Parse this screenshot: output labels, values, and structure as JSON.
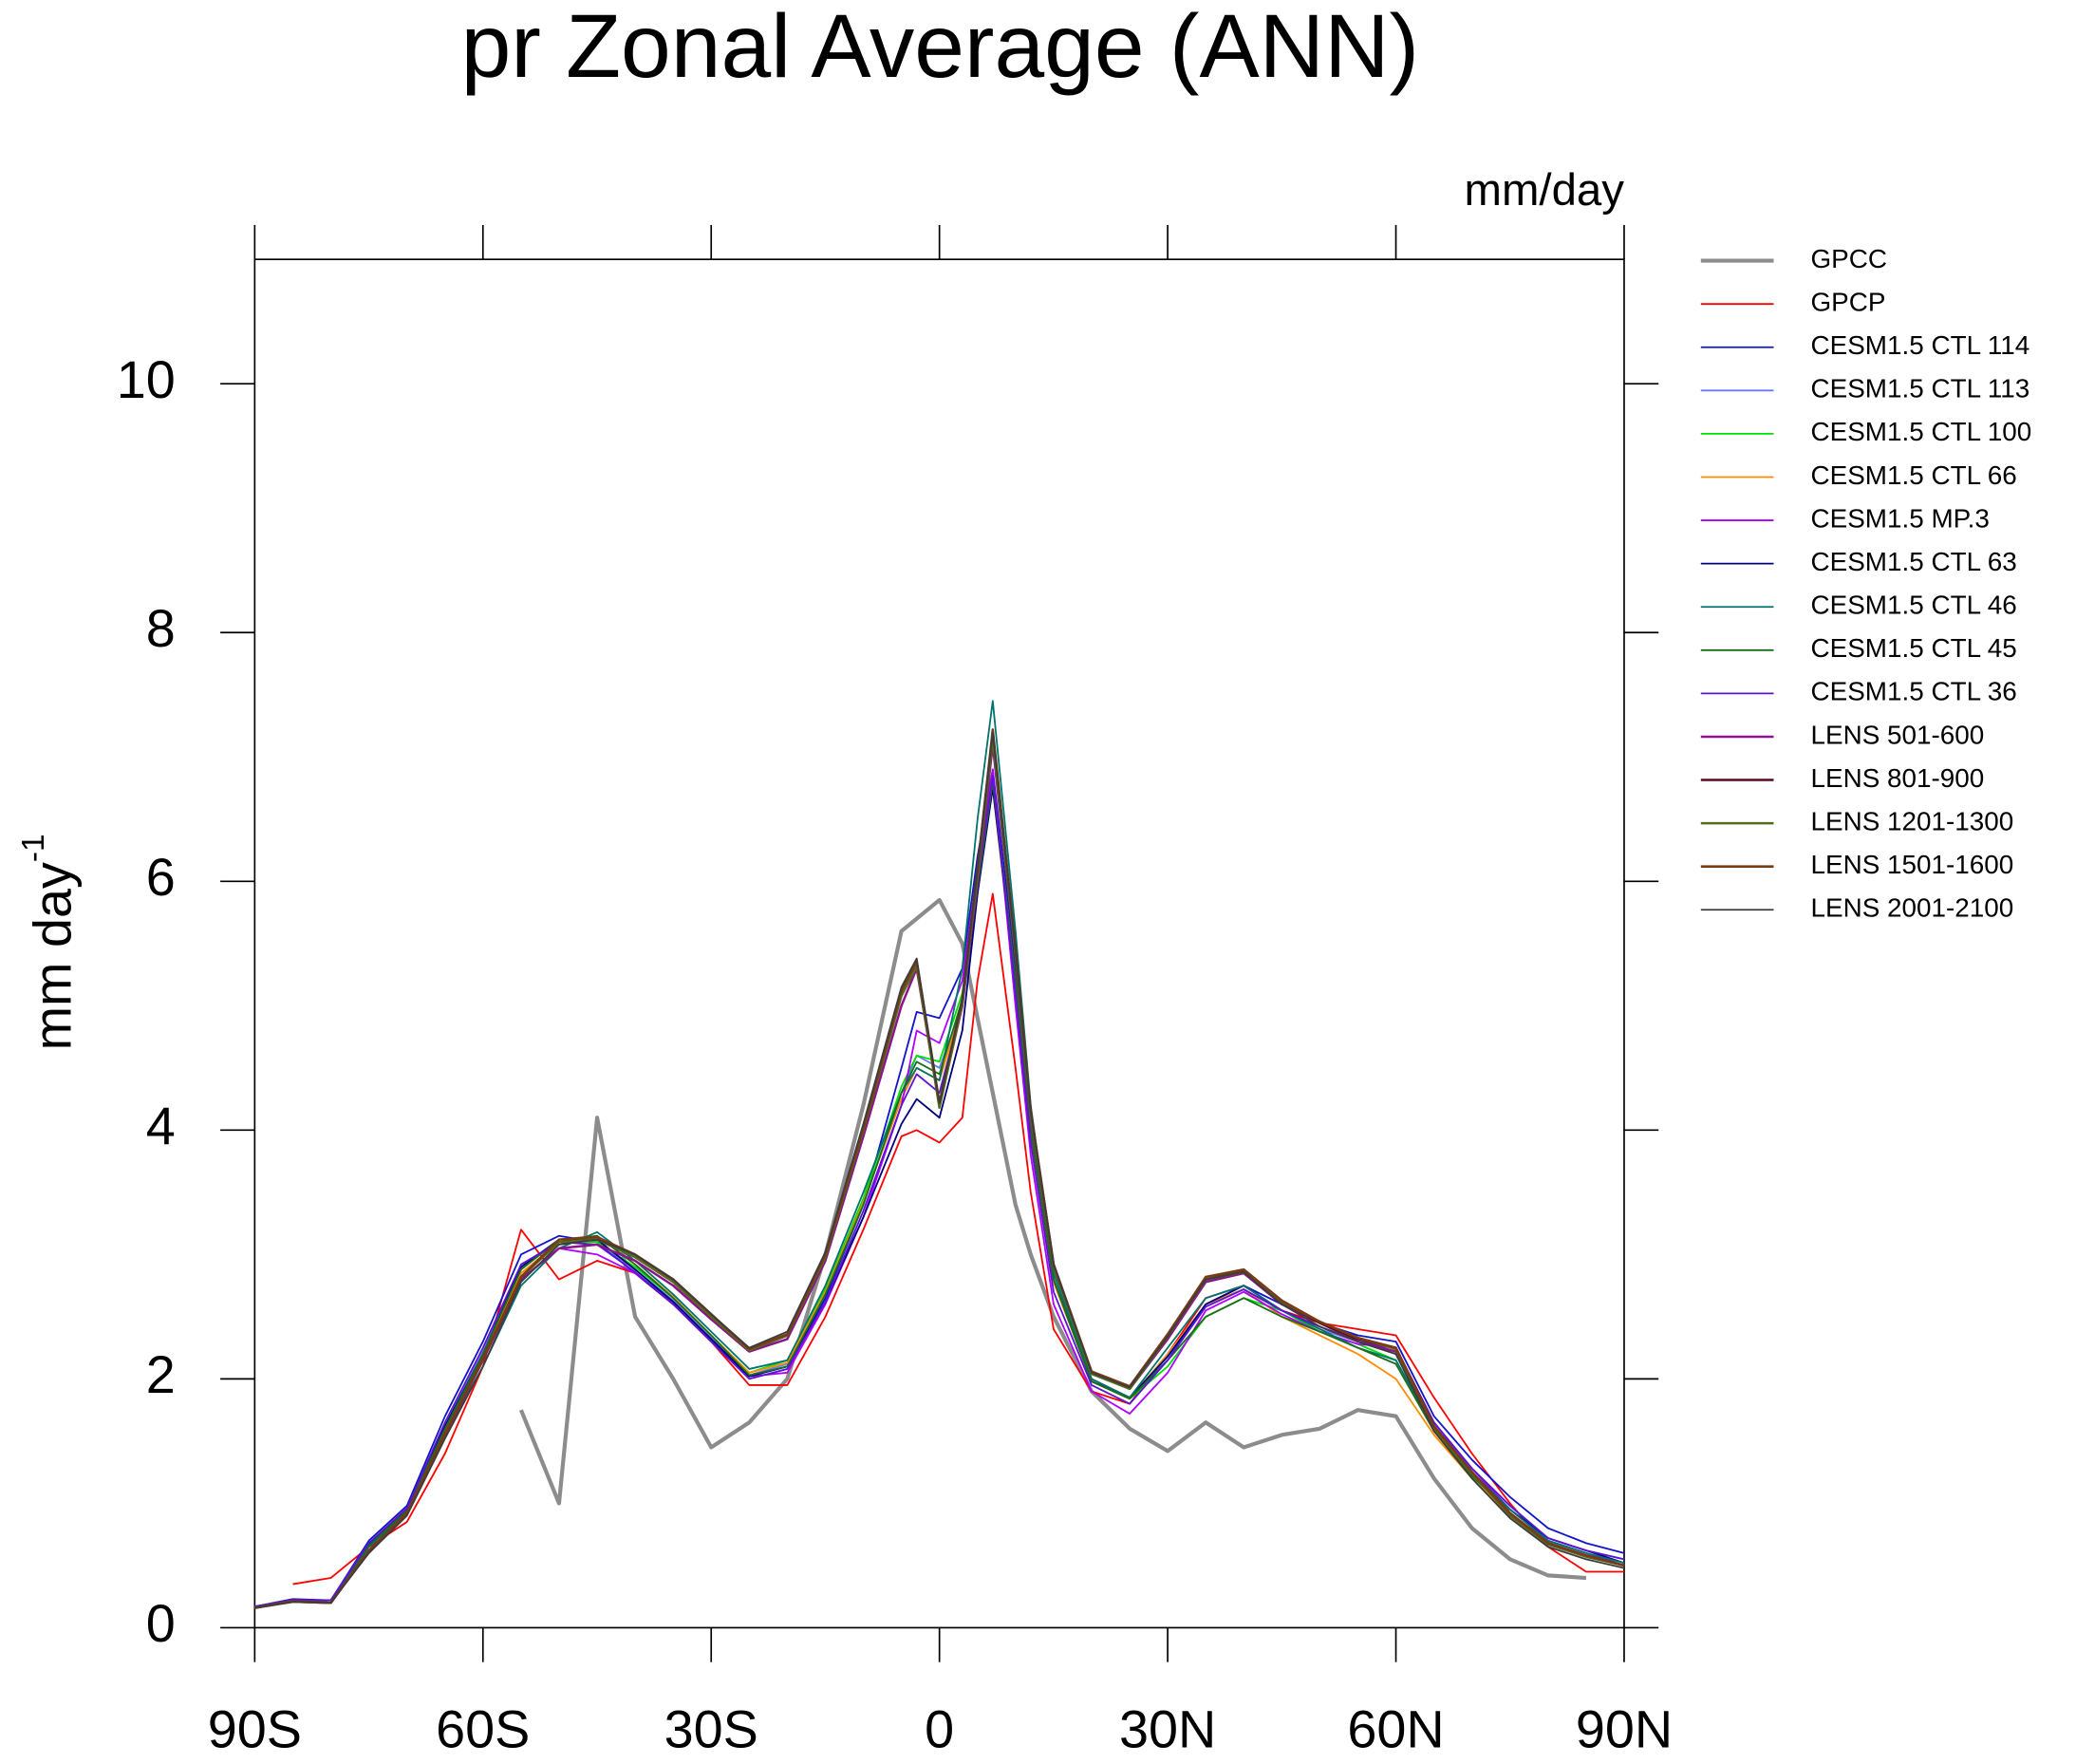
{
  "chart_data": {
    "type": "line",
    "title": "pr Zonal Average (ANN)",
    "units": "mm/day",
    "ylabel": "mm day",
    "ylabel_sup": "-1",
    "x": [
      -90,
      -85,
      -80,
      -75,
      -70,
      -65,
      -60,
      -55,
      -50,
      -45,
      -40,
      -35,
      -30,
      -25,
      -20,
      -15,
      -10,
      -5,
      -3,
      0,
      3,
      5,
      7,
      10,
      12,
      15,
      20,
      25,
      30,
      35,
      40,
      45,
      50,
      55,
      60,
      65,
      70,
      75,
      80,
      85,
      90
    ],
    "xlim": [
      -90,
      90
    ],
    "xticks": [
      {
        "value": -90,
        "label": "90S"
      },
      {
        "value": -60,
        "label": "60S"
      },
      {
        "value": -30,
        "label": "30S"
      },
      0,
      {
        "value": 30,
        "label": "30N"
      },
      {
        "value": 60,
        "label": "60N"
      },
      {
        "value": 90,
        "label": "90N"
      }
    ],
    "ylim": [
      0,
      11
    ],
    "yticks": [
      0,
      2,
      4,
      6,
      8,
      10
    ],
    "grid": false,
    "legend": "outside-right",
    "series": [
      {
        "name": "GPCC",
        "color": "#8c8c8c",
        "linewidth": 3,
        "values": [
          null,
          null,
          null,
          null,
          null,
          null,
          null,
          1.75,
          1.0,
          4.1,
          2.5,
          2.0,
          1.45,
          1.65,
          2.0,
          3.0,
          4.2,
          5.6,
          5.7,
          5.85,
          5.5,
          4.9,
          4.3,
          3.4,
          3.0,
          2.5,
          1.9,
          1.6,
          1.42,
          1.65,
          1.45,
          1.55,
          1.6,
          1.75,
          1.7,
          1.2,
          0.8,
          0.55,
          0.42,
          0.4,
          null
        ]
      },
      {
        "name": "GPCP",
        "color": "#ff0000",
        "linewidth": 1.3,
        "values": [
          null,
          0.35,
          0.4,
          0.65,
          0.85,
          1.4,
          2.1,
          3.2,
          2.8,
          2.95,
          2.85,
          2.6,
          2.3,
          1.95,
          1.95,
          2.5,
          3.2,
          3.95,
          4.0,
          3.9,
          4.1,
          5.2,
          5.9,
          4.5,
          3.5,
          2.4,
          1.9,
          1.8,
          2.2,
          2.65,
          2.75,
          2.55,
          2.45,
          2.4,
          2.35,
          1.85,
          1.4,
          1.0,
          0.65,
          0.45,
          0.45
        ]
      },
      {
        "name": "CESM1.5 CTL 114",
        "color": "#1414c8",
        "linewidth": 1.3,
        "values": [
          0.17,
          0.23,
          0.22,
          0.7,
          0.98,
          1.7,
          2.3,
          3.0,
          3.15,
          3.1,
          2.85,
          2.6,
          2.3,
          2.02,
          2.1,
          2.65,
          3.4,
          4.5,
          4.95,
          4.9,
          5.3,
          6.2,
          6.9,
          5.3,
          4.0,
          2.8,
          2.0,
          1.85,
          2.15,
          2.6,
          2.75,
          2.6,
          2.45,
          2.35,
          2.3,
          1.7,
          1.35,
          1.05,
          0.8,
          0.68,
          0.6
        ]
      },
      {
        "name": "CESM1.5 CTL 113",
        "color": "#6a7aff",
        "linewidth": 1.3,
        "values": [
          0.17,
          0.22,
          0.22,
          0.68,
          0.95,
          1.62,
          2.22,
          2.88,
          3.12,
          3.1,
          2.88,
          2.63,
          2.33,
          2.03,
          2.12,
          2.7,
          3.4,
          4.3,
          4.6,
          4.5,
          5.0,
          5.9,
          6.8,
          5.2,
          4.0,
          2.78,
          1.98,
          1.84,
          2.18,
          2.6,
          2.72,
          2.55,
          2.4,
          2.3,
          2.25,
          1.62,
          1.28,
          0.98,
          0.72,
          0.62,
          0.55
        ]
      },
      {
        "name": "CESM1.5 CTL 100",
        "color": "#00e000",
        "linewidth": 1.3,
        "values": [
          0.17,
          0.22,
          0.22,
          0.66,
          0.94,
          1.6,
          2.2,
          2.85,
          3.1,
          3.1,
          2.9,
          2.65,
          2.35,
          2.05,
          2.15,
          2.72,
          3.45,
          4.35,
          4.6,
          4.55,
          5.1,
          6.0,
          6.8,
          5.2,
          3.95,
          2.78,
          1.98,
          1.84,
          2.1,
          2.5,
          2.65,
          2.55,
          2.38,
          2.28,
          2.15,
          1.6,
          1.25,
          0.95,
          0.7,
          0.6,
          0.5
        ]
      },
      {
        "name": "CESM1.5 CTL 66",
        "color": "#ff8c00",
        "linewidth": 1.3,
        "values": [
          0.17,
          0.22,
          0.22,
          0.66,
          0.95,
          1.6,
          2.2,
          2.85,
          3.1,
          3.15,
          2.92,
          2.66,
          2.35,
          2.05,
          2.13,
          2.7,
          3.42,
          4.25,
          4.5,
          4.4,
          5.0,
          5.95,
          6.75,
          5.15,
          3.95,
          2.78,
          1.98,
          1.84,
          2.2,
          2.6,
          2.72,
          2.5,
          2.35,
          2.2,
          2.0,
          1.55,
          1.2,
          0.9,
          0.68,
          0.58,
          0.5
        ]
      },
      {
        "name": "CESM1.5 MP.3",
        "color": "#b000ff",
        "linewidth": 1.3,
        "values": [
          0.17,
          0.22,
          0.22,
          0.66,
          0.95,
          1.6,
          2.18,
          2.8,
          3.05,
          3.0,
          2.85,
          2.62,
          2.32,
          2.02,
          2.05,
          2.6,
          3.3,
          4.2,
          4.8,
          4.7,
          5.2,
          6.1,
          6.9,
          5.0,
          3.8,
          2.6,
          1.9,
          1.72,
          2.05,
          2.55,
          2.7,
          2.52,
          2.38,
          2.28,
          2.25,
          1.65,
          1.28,
          0.95,
          0.7,
          0.6,
          0.5
        ]
      },
      {
        "name": "CESM1.5 CTL 63",
        "color": "#000080",
        "linewidth": 1.3,
        "values": [
          0.17,
          0.22,
          0.22,
          0.67,
          0.95,
          1.62,
          2.2,
          2.9,
          3.12,
          3.12,
          2.88,
          2.62,
          2.32,
          2.02,
          2.1,
          2.62,
          3.3,
          4.05,
          4.25,
          4.1,
          4.8,
          5.9,
          6.75,
          5.2,
          4.0,
          2.8,
          1.98,
          1.85,
          2.18,
          2.6,
          2.75,
          2.55,
          2.42,
          2.3,
          2.2,
          1.62,
          1.25,
          0.95,
          0.72,
          0.62,
          0.52
        ]
      },
      {
        "name": "CESM1.5 CTL 46",
        "color": "#00736e",
        "linewidth": 1.3,
        "values": [
          0.17,
          0.22,
          0.22,
          0.65,
          0.93,
          1.55,
          2.1,
          2.75,
          3.05,
          3.18,
          2.95,
          2.68,
          2.38,
          2.08,
          2.15,
          2.75,
          3.5,
          4.3,
          4.5,
          4.4,
          5.3,
          6.5,
          7.45,
          5.6,
          4.2,
          2.85,
          2.0,
          1.85,
          2.25,
          2.65,
          2.75,
          2.55,
          2.4,
          2.25,
          2.15,
          1.6,
          1.25,
          0.95,
          0.7,
          0.6,
          0.52
        ]
      },
      {
        "name": "CESM1.5 CTL 45",
        "color": "#1a6e1a",
        "linewidth": 1.3,
        "values": [
          0.17,
          0.22,
          0.22,
          0.66,
          0.94,
          1.6,
          2.2,
          2.88,
          3.12,
          3.15,
          2.92,
          2.65,
          2.35,
          2.03,
          2.1,
          2.68,
          3.4,
          4.3,
          4.55,
          4.45,
          5.05,
          5.95,
          6.8,
          5.2,
          4.0,
          2.8,
          1.98,
          1.84,
          2.15,
          2.5,
          2.65,
          2.5,
          2.38,
          2.25,
          2.12,
          1.58,
          1.22,
          0.92,
          0.68,
          0.58,
          0.5
        ]
      },
      {
        "name": "CESM1.5 CTL 36",
        "color": "#5a14d2",
        "linewidth": 1.3,
        "values": [
          0.17,
          0.22,
          0.22,
          0.68,
          0.96,
          1.65,
          2.25,
          2.92,
          3.1,
          3.08,
          2.86,
          2.6,
          2.3,
          2.0,
          2.08,
          2.62,
          3.35,
          4.2,
          4.45,
          4.3,
          5.0,
          6.0,
          6.85,
          5.1,
          3.9,
          2.7,
          1.95,
          1.8,
          2.15,
          2.58,
          2.72,
          2.55,
          2.42,
          2.3,
          2.25,
          1.65,
          1.28,
          0.98,
          0.72,
          0.62,
          0.55
        ]
      },
      {
        "name": "LENS 501-600",
        "color": "#8c148c",
        "linewidth": 1.8,
        "values": [
          0.16,
          0.22,
          0.2,
          0.62,
          0.92,
          1.55,
          2.15,
          2.8,
          3.05,
          3.08,
          2.95,
          2.75,
          2.48,
          2.22,
          2.32,
          2.95,
          3.95,
          5.0,
          5.3,
          4.2,
          5.0,
          6.0,
          7.1,
          5.4,
          4.1,
          2.9,
          2.05,
          1.92,
          2.32,
          2.78,
          2.85,
          2.6,
          2.45,
          2.3,
          2.22,
          1.62,
          1.25,
          0.92,
          0.68,
          0.58,
          0.5
        ]
      },
      {
        "name": "LENS 801-900",
        "color": "#5a0a1e",
        "linewidth": 1.8,
        "values": [
          0.16,
          0.21,
          0.2,
          0.62,
          0.92,
          1.56,
          2.16,
          2.82,
          3.1,
          3.12,
          2.98,
          2.78,
          2.5,
          2.23,
          2.35,
          2.98,
          4.0,
          5.1,
          5.35,
          4.2,
          5.05,
          6.1,
          7.2,
          5.45,
          4.15,
          2.92,
          2.05,
          1.93,
          2.35,
          2.8,
          2.87,
          2.62,
          2.45,
          2.32,
          2.25,
          1.62,
          1.25,
          0.92,
          0.68,
          0.58,
          0.5
        ]
      },
      {
        "name": "LENS 1201-1300",
        "color": "#556b1e",
        "linewidth": 1.8,
        "values": [
          0.16,
          0.21,
          0.2,
          0.62,
          0.92,
          1.56,
          2.16,
          2.82,
          3.1,
          3.12,
          2.98,
          2.78,
          2.5,
          2.23,
          2.35,
          2.98,
          4.0,
          5.08,
          5.32,
          4.18,
          5.02,
          6.05,
          7.15,
          5.42,
          4.12,
          2.9,
          2.04,
          1.92,
          2.34,
          2.8,
          2.86,
          2.62,
          2.46,
          2.33,
          2.24,
          1.6,
          1.24,
          0.9,
          0.67,
          0.57,
          0.5
        ]
      },
      {
        "name": "LENS 1501-1600",
        "color": "#7a3a14",
        "linewidth": 1.8,
        "values": [
          0.16,
          0.21,
          0.2,
          0.62,
          0.92,
          1.56,
          2.16,
          2.82,
          3.12,
          3.14,
          3.0,
          2.8,
          2.52,
          2.24,
          2.36,
          3.0,
          4.02,
          5.12,
          5.36,
          4.22,
          5.05,
          6.1,
          7.22,
          5.46,
          4.16,
          2.92,
          2.06,
          1.94,
          2.36,
          2.82,
          2.88,
          2.63,
          2.46,
          2.33,
          2.25,
          1.62,
          1.25,
          0.92,
          0.68,
          0.58,
          0.5
        ]
      },
      {
        "name": "LENS 2001-2100",
        "color": "#3c3c3c",
        "linewidth": 1.3,
        "values": [
          0.16,
          0.21,
          0.2,
          0.6,
          0.9,
          1.52,
          2.1,
          2.78,
          3.08,
          3.12,
          3.0,
          2.8,
          2.52,
          2.25,
          2.38,
          3.02,
          4.05,
          5.15,
          5.38,
          4.22,
          5.06,
          6.1,
          7.2,
          5.45,
          4.15,
          2.92,
          2.05,
          1.93,
          2.34,
          2.8,
          2.86,
          2.6,
          2.42,
          2.3,
          2.2,
          1.58,
          1.2,
          0.88,
          0.65,
          0.55,
          0.48
        ]
      }
    ]
  }
}
